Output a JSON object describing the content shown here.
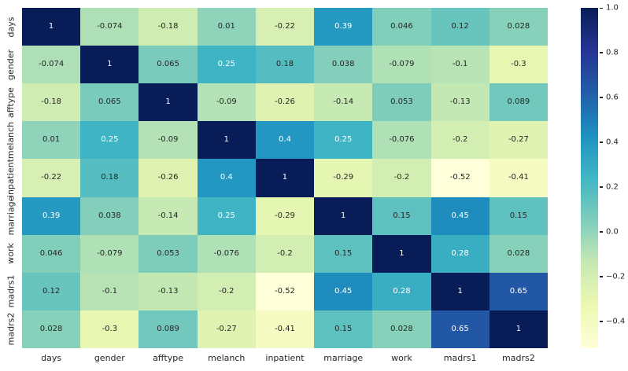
{
  "chart_data": {
    "type": "heatmap",
    "title": "",
    "categories": [
      "days",
      "gender",
      "afftype",
      "melanch",
      "inpatient",
      "marriage",
      "work",
      "madrs1",
      "madrs2"
    ],
    "matrix": [
      [
        1,
        -0.074,
        -0.18,
        0.01,
        -0.22,
        0.39,
        0.046,
        0.12,
        0.028
      ],
      [
        -0.074,
        1,
        0.065,
        0.25,
        0.18,
        0.038,
        -0.079,
        -0.1,
        -0.3
      ],
      [
        -0.18,
        0.065,
        1,
        -0.09,
        -0.26,
        -0.14,
        0.053,
        -0.13,
        0.089
      ],
      [
        0.01,
        0.25,
        -0.09,
        1,
        0.4,
        0.25,
        -0.076,
        -0.2,
        -0.27
      ],
      [
        -0.22,
        0.18,
        -0.26,
        0.4,
        1,
        -0.29,
        -0.2,
        -0.52,
        -0.41
      ],
      [
        0.39,
        0.038,
        -0.14,
        0.25,
        -0.29,
        1,
        0.15,
        0.45,
        0.15
      ],
      [
        0.046,
        -0.079,
        0.053,
        -0.076,
        -0.2,
        0.15,
        1,
        0.28,
        0.028
      ],
      [
        0.12,
        -0.1,
        -0.13,
        -0.2,
        -0.52,
        0.45,
        0.28,
        1,
        0.65
      ],
      [
        0.028,
        -0.3,
        0.089,
        -0.27,
        -0.41,
        0.15,
        0.028,
        0.65,
        1
      ]
    ],
    "vmin": -0.52,
    "vmax": 1.0,
    "colormap": {
      "name": "YlGnBu",
      "stops": [
        "#ffffd9",
        "#edf8b1",
        "#c7e9b4",
        "#7fcdbb",
        "#41b6c4",
        "#1d91c0",
        "#225ea8",
        "#253494",
        "#081d58"
      ]
    },
    "annotation_text_colors": {
      "dark": "#262626",
      "light": "#ffffff"
    },
    "colorbar": {
      "position": "right",
      "ticks": [
        {
          "value": 1.0,
          "label": "1.0"
        },
        {
          "value": 0.8,
          "label": "0.8"
        },
        {
          "value": 0.6,
          "label": "0.6"
        },
        {
          "value": 0.4,
          "label": "0.4"
        },
        {
          "value": 0.2,
          "label": "0.2"
        },
        {
          "value": 0.0,
          "label": "0.0"
        },
        {
          "value": -0.2,
          "label": "−0.2"
        },
        {
          "value": -0.4,
          "label": "−0.4"
        }
      ]
    },
    "background": "#ffffff",
    "grid": false,
    "legend": false
  }
}
